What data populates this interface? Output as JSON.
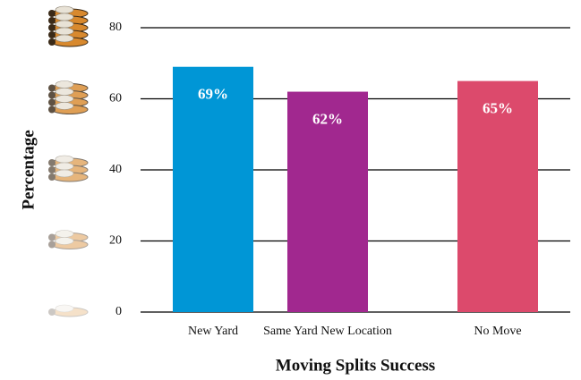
{
  "chart_data": {
    "type": "bar",
    "categories": [
      "New Yard",
      "Same Yard New Location",
      "No Move"
    ],
    "values": [
      69,
      62,
      65
    ],
    "value_labels": [
      "69%",
      "62%",
      "65%"
    ],
    "colors": [
      "#0096d6",
      "#a1288f",
      "#dc4a6c"
    ],
    "xlabel": "Moving Splits Success",
    "ylabel": "Percentage",
    "ylim": [
      0,
      80
    ],
    "yticks": [
      0,
      20,
      40,
      60,
      80
    ],
    "grid": true
  }
}
